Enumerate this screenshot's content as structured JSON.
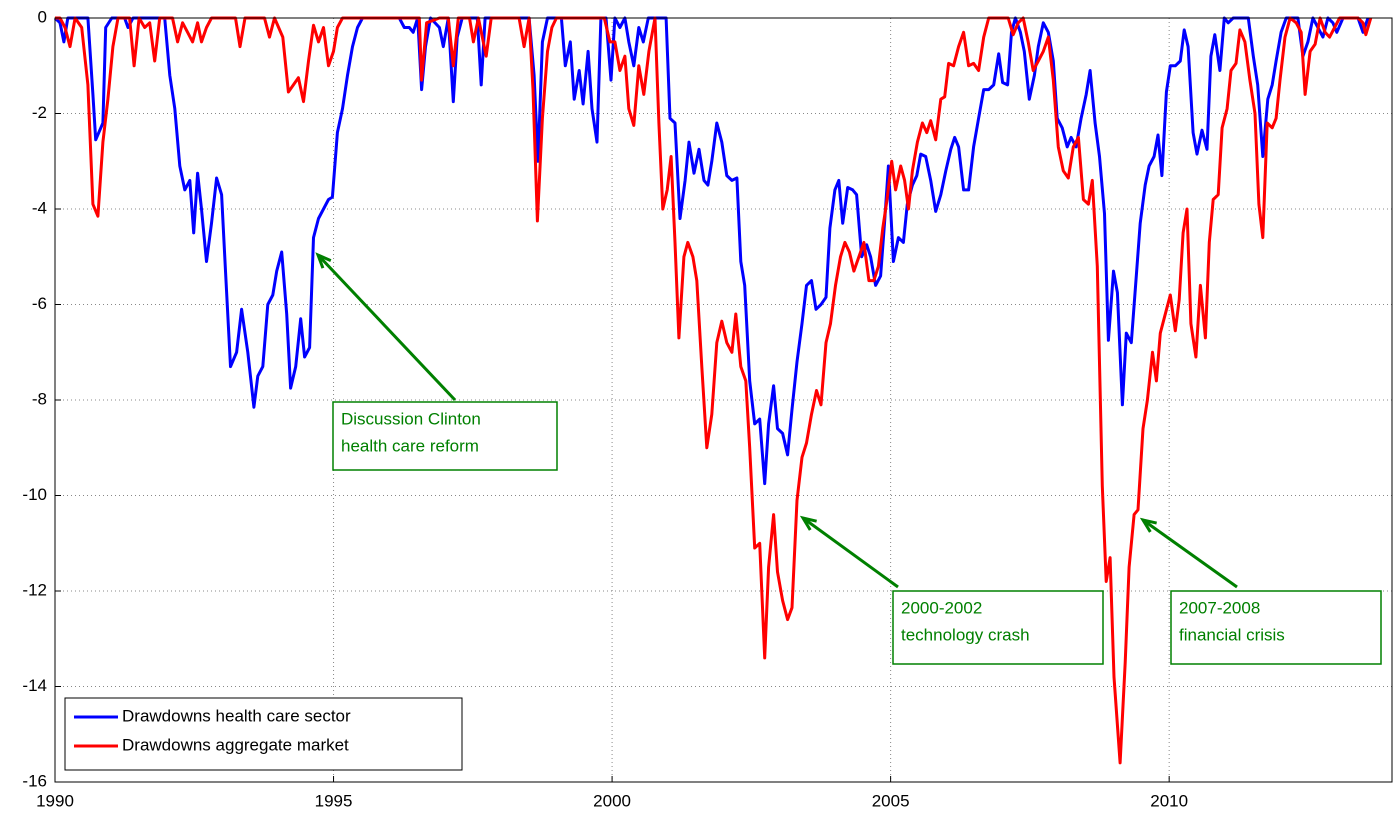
{
  "chart_data": {
    "type": "line",
    "xlim": [
      1990,
      2014
    ],
    "xticks": [
      1990,
      1995,
      2000,
      2005,
      2010
    ],
    "ylim": [
      -16,
      0
    ],
    "yticks": [
      -16,
      -14,
      -12,
      -10,
      -8,
      -6,
      -4,
      -2,
      0
    ],
    "grid": true,
    "legend": "lower left",
    "annotations": [
      {
        "lines": [
          "Discussion Clinton",
          "health care reform"
        ],
        "color": "#008000"
      },
      {
        "lines": [
          "2000-2002",
          "technology crash"
        ],
        "color": "#008000"
      },
      {
        "lines": [
          "2007-2008",
          "financial crisis"
        ],
        "color": "#008000"
      }
    ],
    "series": [
      {
        "name": "Drawdowns health care sector",
        "color": "#0000ff",
        "x": [
          1990.0,
          1990.09,
          1990.16,
          1990.23,
          1990.59,
          1990.68,
          1990.73,
          1990.86,
          1990.91,
          1991.02,
          1991.25,
          1991.31,
          1991.4,
          1991.97,
          1992.06,
          1992.15,
          1992.24,
          1992.33,
          1992.42,
          1992.49,
          1992.56,
          1992.63,
          1992.72,
          1992.81,
          1992.9,
          1992.99,
          1993.06,
          1993.15,
          1993.26,
          1993.35,
          1993.46,
          1993.57,
          1993.64,
          1993.73,
          1993.82,
          1993.91,
          1993.98,
          1994.07,
          1994.16,
          1994.23,
          1994.32,
          1994.41,
          1994.48,
          1994.57,
          1994.64,
          1994.73,
          1994.82,
          1994.91,
          1994.98,
          1995.07,
          1995.16,
          1995.25,
          1995.34,
          1995.43,
          1995.52,
          1996.18,
          1996.27,
          1996.36,
          1996.43,
          1996.51,
          1996.58,
          1996.65,
          1996.74,
          1996.9,
          1996.97,
          1997.06,
          1997.15,
          1997.22,
          1997.31,
          1997.58,
          1997.65,
          1997.72,
          1998.51,
          1998.6,
          1998.67,
          1998.75,
          1998.84,
          1999.09,
          1999.16,
          1999.25,
          1999.32,
          1999.41,
          1999.48,
          1999.57,
          1999.64,
          1999.73,
          1999.8,
          1999.89,
          1999.98,
          2000.05,
          2000.14,
          2000.23,
          2000.3,
          2000.39,
          2000.48,
          2000.56,
          2000.65,
          2000.97,
          2001.04,
          2001.13,
          2001.22,
          2001.31,
          2001.38,
          2001.47,
          2001.56,
          2001.65,
          2001.72,
          2001.79,
          2001.88,
          2001.97,
          2002.06,
          2002.15,
          2002.24,
          2002.31,
          2002.38,
          2002.47,
          2002.56,
          2002.65,
          2002.74,
          2002.81,
          2002.9,
          2002.97,
          2003.06,
          2003.15,
          2003.23,
          2003.32,
          2003.41,
          2003.49,
          2003.58,
          2003.66,
          2003.75,
          2003.84,
          2003.91,
          2004.0,
          2004.07,
          2004.14,
          2004.23,
          2004.32,
          2004.39,
          2004.48,
          2004.57,
          2004.64,
          2004.73,
          2004.82,
          2004.89,
          2004.96,
          2005.05,
          2005.14,
          2005.23,
          2005.3,
          2005.39,
          2005.47,
          2005.54,
          2005.63,
          2005.72,
          2005.81,
          2005.9,
          2005.99,
          2006.08,
          2006.15,
          2006.22,
          2006.31,
          2006.4,
          2006.49,
          2006.58,
          2006.67,
          2006.76,
          2006.85,
          2006.94,
          2007.01,
          2007.1,
          2007.17,
          2007.24,
          2007.33,
          2007.4,
          2007.49,
          2007.58,
          2007.65,
          2007.74,
          2007.83,
          2007.92,
          2007.99,
          2008.08,
          2008.17,
          2008.24,
          2008.33,
          2008.42,
          2008.51,
          2008.58,
          2008.67,
          2008.75,
          2008.84,
          2008.91,
          2009.0,
          2009.07,
          2009.16,
          2009.23,
          2009.32,
          2009.41,
          2009.48,
          2009.57,
          2009.64,
          2009.73,
          2009.8,
          2009.87,
          2009.95,
          2010.02,
          2010.11,
          2010.2,
          2010.27,
          2010.34,
          2010.43,
          2010.5,
          2010.59,
          2010.68,
          2010.75,
          2010.82,
          2010.91,
          2010.99,
          2011.06,
          2011.15,
          2011.42,
          2011.51,
          2011.59,
          2011.68,
          2011.77,
          2011.85,
          2011.92,
          2012.01,
          2012.1,
          2012.31,
          2012.4,
          2012.49,
          2012.58,
          2012.76,
          2012.85,
          2012.94,
          2013.01,
          2013.12,
          2013.39,
          2013.48,
          2013.57
        ],
        "values": [
          0,
          -0.1,
          -0.5,
          0,
          0,
          -1.6,
          -2.55,
          -2.2,
          -0.2,
          0,
          0,
          -0.2,
          0,
          0,
          -1.2,
          -1.9,
          -3.1,
          -3.6,
          -3.4,
          -4.5,
          -3.25,
          -4.0,
          -5.1,
          -4.3,
          -3.35,
          -3.7,
          -5.3,
          -7.3,
          -7.0,
          -6.1,
          -7.0,
          -8.15,
          -7.5,
          -7.3,
          -6.0,
          -5.8,
          -5.3,
          -4.9,
          -6.2,
          -7.75,
          -7.3,
          -6.3,
          -7.1,
          -6.9,
          -4.6,
          -4.2,
          -4.0,
          -3.8,
          -3.75,
          -2.4,
          -1.9,
          -1.2,
          -0.6,
          -0.2,
          0,
          0,
          -0.2,
          -0.2,
          -0.3,
          0,
          -1.5,
          -0.6,
          0,
          -0.2,
          -0.6,
          0,
          -1.75,
          -0.4,
          0,
          0,
          -1.4,
          0,
          0,
          -1.2,
          -3.0,
          -0.5,
          0,
          0,
          -1.0,
          -0.5,
          -1.7,
          -1.1,
          -1.8,
          -0.7,
          -1.9,
          -2.6,
          0,
          0,
          -1.3,
          0,
          -0.2,
          0,
          -0.5,
          -1.0,
          -0.2,
          -0.5,
          0,
          0,
          -2.1,
          -2.2,
          -4.2,
          -3.4,
          -2.6,
          -3.25,
          -2.75,
          -3.4,
          -3.5,
          -3.0,
          -2.2,
          -2.6,
          -3.3,
          -3.4,
          -3.35,
          -5.1,
          -5.6,
          -7.6,
          -8.5,
          -8.4,
          -9.75,
          -8.5,
          -7.7,
          -8.6,
          -8.7,
          -9.15,
          -8.2,
          -7.2,
          -6.4,
          -5.6,
          -5.5,
          -6.1,
          -6.0,
          -5.85,
          -4.4,
          -3.6,
          -3.4,
          -4.3,
          -3.55,
          -3.6,
          -3.7,
          -5.0,
          -4.75,
          -5.0,
          -5.6,
          -5.4,
          -4.3,
          -3.1,
          -5.1,
          -4.6,
          -4.7,
          -3.9,
          -3.5,
          -3.3,
          -2.85,
          -2.9,
          -3.4,
          -4.05,
          -3.7,
          -3.2,
          -2.75,
          -2.5,
          -2.7,
          -3.6,
          -3.6,
          -2.7,
          -2.1,
          -1.5,
          -1.5,
          -1.4,
          -0.75,
          -1.35,
          -1.4,
          -0.3,
          0,
          -0.3,
          -0.7,
          -1.7,
          -1.2,
          -0.6,
          -0.1,
          -0.3,
          -0.9,
          -2.1,
          -2.3,
          -2.7,
          -2.5,
          -2.7,
          -2.1,
          -1.6,
          -1.1,
          -2.2,
          -2.9,
          -4.1,
          -6.75,
          -5.3,
          -5.75,
          -8.1,
          -6.6,
          -6.8,
          -5.4,
          -4.3,
          -3.5,
          -3.1,
          -2.9,
          -2.45,
          -3.3,
          -1.55,
          -1.0,
          -1.0,
          -0.9,
          -0.25,
          -0.6,
          -2.4,
          -2.85,
          -2.35,
          -2.75,
          -0.8,
          -0.35,
          -1.1,
          0,
          -0.1,
          0,
          0,
          -0.8,
          -1.4,
          -2.9,
          -1.7,
          -1.4,
          -0.9,
          -0.3,
          0,
          0,
          -0.8,
          -0.5,
          0,
          -0.4,
          0,
          -0.1,
          -0.3,
          0,
          0,
          -0.3,
          0
        ]
      },
      {
        "name": "Drawdowns aggregate market",
        "color": "#ff0000",
        "x": [
          1990.0,
          1990.09,
          1990.18,
          1990.27,
          1990.36,
          1990.48,
          1990.59,
          1990.68,
          1990.77,
          1990.86,
          1990.95,
          1991.04,
          1991.13,
          1991.34,
          1991.42,
          1991.51,
          1991.61,
          1991.7,
          1991.79,
          1991.88,
          1992.11,
          1992.2,
          1992.29,
          1992.38,
          1992.47,
          1992.56,
          1992.63,
          1992.72,
          1992.81,
          1993.24,
          1993.32,
          1993.41,
          1993.76,
          1993.85,
          1993.94,
          1994.09,
          1994.19,
          1994.28,
          1994.37,
          1994.46,
          1994.55,
          1994.64,
          1994.73,
          1994.82,
          1994.91,
          1995.0,
          1995.07,
          1995.16,
          1996.54,
          1996.58,
          1996.67,
          1996.9,
          1997.06,
          1997.15,
          1997.24,
          1997.44,
          1997.51,
          1997.6,
          1997.74,
          1997.83,
          1998.33,
          1998.42,
          1998.51,
          1998.58,
          1998.66,
          1998.75,
          1998.84,
          1998.92,
          1999.0,
          1999.77,
          1999.86,
          1999.96,
          2000.05,
          2000.14,
          2000.23,
          2000.3,
          2000.39,
          2000.48,
          2000.57,
          2000.66,
          2000.77,
          2000.84,
          2000.91,
          2000.99,
          2001.06,
          2001.13,
          2001.2,
          2001.29,
          2001.36,
          2001.45,
          2001.52,
          2001.61,
          2001.7,
          2001.79,
          2001.88,
          2001.97,
          2002.06,
          2002.15,
          2002.22,
          2002.31,
          2002.4,
          2002.47,
          2002.56,
          2002.65,
          2002.74,
          2002.81,
          2002.9,
          2002.97,
          2003.06,
          2003.15,
          2003.23,
          2003.32,
          2003.41,
          2003.49,
          2003.58,
          2003.67,
          2003.75,
          2003.84,
          2003.92,
          2004.01,
          2004.1,
          2004.18,
          2004.26,
          2004.34,
          2004.43,
          2004.52,
          2004.61,
          2004.7,
          2004.78,
          2004.86,
          2004.93,
          2005.02,
          2005.09,
          2005.18,
          2005.25,
          2005.32,
          2005.39,
          2005.48,
          2005.57,
          2005.65,
          2005.72,
          2005.81,
          2005.9,
          2005.97,
          2006.04,
          2006.13,
          2006.22,
          2006.31,
          2006.4,
          2006.49,
          2006.58,
          2006.67,
          2006.76,
          2007.11,
          2007.2,
          2007.29,
          2007.38,
          2007.47,
          2007.56,
          2007.65,
          2007.74,
          2007.83,
          2007.92,
          2008.01,
          2008.1,
          2008.19,
          2008.28,
          2008.37,
          2008.46,
          2008.55,
          2008.62,
          2008.71,
          2008.8,
          2008.87,
          2008.94,
          2009.01,
          2009.12,
          2009.21,
          2009.28,
          2009.37,
          2009.44,
          2009.53,
          2009.61,
          2009.7,
          2009.77,
          2009.84,
          2009.93,
          2010.02,
          2010.11,
          2010.18,
          2010.25,
          2010.32,
          2010.39,
          2010.48,
          2010.56,
          2010.65,
          2010.72,
          2010.79,
          2010.88,
          2010.95,
          2011.04,
          2011.11,
          2011.2,
          2011.27,
          2011.36,
          2011.45,
          2011.54,
          2011.61,
          2011.68,
          2011.76,
          2011.85,
          2011.92,
          2011.99,
          2012.08,
          2012.17,
          2012.28,
          2012.37,
          2012.44,
          2012.53,
          2012.62,
          2012.71,
          2012.8,
          2012.88,
          2012.97,
          2013.06,
          2013.39,
          2013.48,
          2013.53,
          2013.62
        ],
        "values": [
          0,
          0,
          -0.2,
          -0.6,
          0,
          -0.2,
          -1.4,
          -3.9,
          -4.15,
          -2.6,
          -1.7,
          -0.6,
          0,
          0,
          -1.0,
          0,
          -0.2,
          -0.1,
          -0.9,
          0,
          0,
          -0.5,
          -0.1,
          -0.3,
          -0.5,
          -0.1,
          -0.5,
          -0.2,
          0,
          0,
          -0.6,
          0,
          0,
          -0.4,
          0,
          -0.4,
          -1.55,
          -1.4,
          -1.25,
          -1.75,
          -0.9,
          -0.15,
          -0.5,
          -0.2,
          -1.0,
          -0.7,
          -0.2,
          0,
          0,
          -1.3,
          -0.1,
          0,
          0,
          -1.0,
          0,
          0,
          -0.5,
          0,
          -0.8,
          0,
          0,
          -0.6,
          0,
          -1.5,
          -4.25,
          -2.1,
          -0.7,
          -0.2,
          0,
          0,
          0,
          -0.5,
          -0.5,
          -1.1,
          -0.8,
          -1.9,
          -2.25,
          -1.0,
          -1.6,
          -0.7,
          0,
          -2.2,
          -4.0,
          -3.6,
          -2.9,
          -4.7,
          -6.7,
          -5.0,
          -4.7,
          -5.0,
          -5.5,
          -7.3,
          -9.0,
          -8.3,
          -6.8,
          -6.35,
          -6.8,
          -7.0,
          -6.2,
          -7.3,
          -7.6,
          -9.0,
          -11.1,
          -11.0,
          -13.4,
          -11.5,
          -10.4,
          -11.6,
          -12.2,
          -12.6,
          -12.35,
          -10.1,
          -9.2,
          -8.9,
          -8.3,
          -7.8,
          -8.1,
          -6.8,
          -6.4,
          -5.6,
          -5.0,
          -4.7,
          -4.9,
          -5.3,
          -5.0,
          -4.7,
          -5.5,
          -5.5,
          -5.2,
          -4.4,
          -3.85,
          -3.0,
          -3.6,
          -3.1,
          -3.4,
          -4.0,
          -3.2,
          -2.6,
          -2.2,
          -2.4,
          -2.15,
          -2.55,
          -1.7,
          -1.65,
          -0.95,
          -1.0,
          -0.6,
          -0.3,
          -1.0,
          -0.95,
          -1.1,
          -0.4,
          0,
          0,
          -0.35,
          -0.1,
          0,
          -0.5,
          -1.1,
          -0.9,
          -0.7,
          -0.4,
          -1.3,
          -2.7,
          -3.2,
          -3.35,
          -2.7,
          -2.5,
          -3.8,
          -3.9,
          -3.4,
          -5.2,
          -9.8,
          -11.8,
          -11.3,
          -13.8,
          -15.6,
          -13.5,
          -11.5,
          -10.4,
          -10.3,
          -8.6,
          -8.0,
          -7.0,
          -7.6,
          -6.6,
          -6.2,
          -5.8,
          -6.55,
          -5.9,
          -4.5,
          -4.0,
          -6.4,
          -7.1,
          -5.6,
          -6.7,
          -4.7,
          -3.8,
          -3.7,
          -2.3,
          -1.9,
          -1.1,
          -0.95,
          -0.25,
          -0.5,
          -1.3,
          -2.0,
          -3.9,
          -4.6,
          -2.2,
          -2.3,
          -2.1,
          -1.3,
          -0.4,
          0,
          -0.1,
          -0.3,
          -1.6,
          -0.7,
          -0.55,
          0,
          -0.3,
          -0.4,
          -0.2,
          0,
          0,
          -0.1,
          -0.35,
          0
        ]
      }
    ]
  }
}
